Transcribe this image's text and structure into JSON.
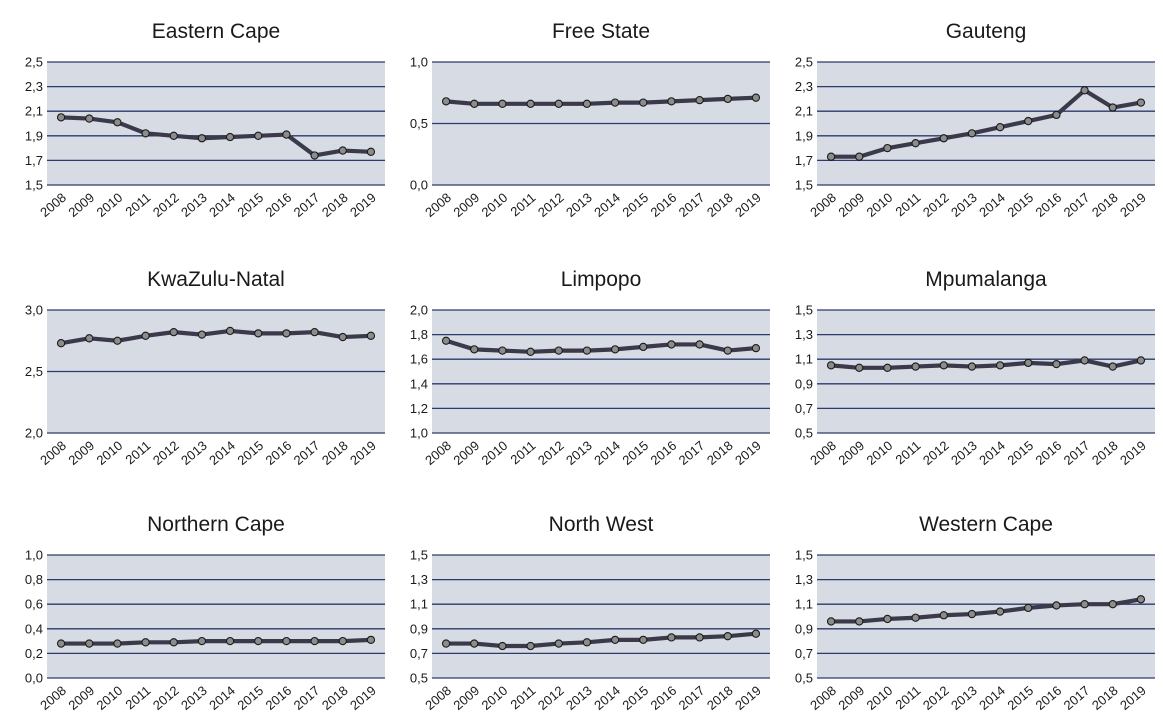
{
  "chart_data": [
    {
      "type": "line",
      "title": "Eastern Cape",
      "x": [
        "2008",
        "2009",
        "2010",
        "2011",
        "2012",
        "2013",
        "2014",
        "2015",
        "2016",
        "2017",
        "2018",
        "2019"
      ],
      "ylim": [
        1.5,
        2.5
      ],
      "yticks": [
        "1,5",
        "1,7",
        "1,9",
        "2,1",
        "2,3",
        "2,5"
      ],
      "grid": true,
      "series": [
        {
          "values": [
            2.05,
            2.04,
            2.01,
            1.92,
            1.9,
            1.88,
            1.89,
            1.9,
            1.91,
            1.74,
            1.78,
            1.77
          ]
        }
      ]
    },
    {
      "type": "line",
      "title": "Free State",
      "x": [
        "2008",
        "2009",
        "2010",
        "2011",
        "2012",
        "2013",
        "2014",
        "2015",
        "2016",
        "2017",
        "2018",
        "2019"
      ],
      "ylim": [
        0,
        1
      ],
      "yticks": [
        "0,0",
        "0,5",
        "1,0"
      ],
      "grid": true,
      "series": [
        {
          "values": [
            0.68,
            0.66,
            0.66,
            0.66,
            0.66,
            0.66,
            0.67,
            0.67,
            0.68,
            0.69,
            0.7,
            0.71
          ]
        }
      ]
    },
    {
      "type": "line",
      "title": "Gauteng",
      "x": [
        "2008",
        "2009",
        "2010",
        "2011",
        "2012",
        "2013",
        "2014",
        "2015",
        "2016",
        "2017",
        "2018",
        "2019"
      ],
      "ylim": [
        1.5,
        2.5
      ],
      "yticks": [
        "1,5",
        "1,7",
        "1,9",
        "2,1",
        "2,3",
        "2,5"
      ],
      "grid": true,
      "series": [
        {
          "values": [
            1.73,
            1.73,
            1.8,
            1.84,
            1.88,
            1.92,
            1.97,
            2.02,
            2.07,
            2.27,
            2.13,
            2.17
          ]
        }
      ]
    },
    {
      "type": "line",
      "title": "KwaZulu-Natal",
      "x": [
        "2008",
        "2009",
        "2010",
        "2011",
        "2012",
        "2013",
        "2014",
        "2015",
        "2016",
        "2017",
        "2018",
        "2019"
      ],
      "ylim": [
        2,
        3
      ],
      "yticks": [
        "2,0",
        "2,5",
        "3,0"
      ],
      "grid": true,
      "series": [
        {
          "values": [
            2.73,
            2.77,
            2.75,
            2.79,
            2.82,
            2.8,
            2.83,
            2.81,
            2.81,
            2.82,
            2.78,
            2.79
          ]
        }
      ]
    },
    {
      "type": "line",
      "title": "Limpopo",
      "x": [
        "2008",
        "2009",
        "2010",
        "2011",
        "2012",
        "2013",
        "2014",
        "2015",
        "2016",
        "2017",
        "2018",
        "2019"
      ],
      "ylim": [
        1,
        2
      ],
      "yticks": [
        "1,0",
        "1,2",
        "1,4",
        "1,6",
        "1,8",
        "2,0"
      ],
      "grid": true,
      "series": [
        {
          "values": [
            1.75,
            1.68,
            1.67,
            1.66,
            1.67,
            1.67,
            1.68,
            1.7,
            1.72,
            1.72,
            1.67,
            1.69
          ]
        }
      ]
    },
    {
      "type": "line",
      "title": "Mpumalanga",
      "x": [
        "2008",
        "2009",
        "2010",
        "2011",
        "2012",
        "2013",
        "2014",
        "2015",
        "2016",
        "2017",
        "2018",
        "2019"
      ],
      "ylim": [
        0.5,
        1.5
      ],
      "yticks": [
        "0,5",
        "0,7",
        "0,9",
        "1,1",
        "1,3",
        "1,5"
      ],
      "grid": true,
      "series": [
        {
          "values": [
            1.05,
            1.03,
            1.03,
            1.04,
            1.05,
            1.04,
            1.05,
            1.07,
            1.06,
            1.09,
            1.04,
            1.09
          ]
        }
      ]
    },
    {
      "type": "line",
      "title": "Northern Cape",
      "x": [
        "2008",
        "2009",
        "2010",
        "2011",
        "2012",
        "2013",
        "2014",
        "2015",
        "2016",
        "2017",
        "2018",
        "2019"
      ],
      "ylim": [
        0,
        1
      ],
      "yticks": [
        "0,0",
        "0,2",
        "0,4",
        "0,6",
        "0,8",
        "1,0"
      ],
      "grid": true,
      "series": [
        {
          "values": [
            0.28,
            0.28,
            0.28,
            0.29,
            0.29,
            0.3,
            0.3,
            0.3,
            0.3,
            0.3,
            0.3,
            0.31
          ]
        }
      ]
    },
    {
      "type": "line",
      "title": "North West",
      "x": [
        "2008",
        "2009",
        "2010",
        "2011",
        "2012",
        "2013",
        "2014",
        "2015",
        "2016",
        "2017",
        "2018",
        "2019"
      ],
      "ylim": [
        0.5,
        1.5
      ],
      "yticks": [
        "0,5",
        "0,7",
        "0,9",
        "1,1",
        "1,3",
        "1,5"
      ],
      "grid": true,
      "series": [
        {
          "values": [
            0.78,
            0.78,
            0.76,
            0.76,
            0.78,
            0.79,
            0.81,
            0.81,
            0.83,
            0.83,
            0.84,
            0.86
          ]
        }
      ]
    },
    {
      "type": "line",
      "title": "Western Cape",
      "x": [
        "2008",
        "2009",
        "2010",
        "2011",
        "2012",
        "2013",
        "2014",
        "2015",
        "2016",
        "2017",
        "2018",
        "2019"
      ],
      "ylim": [
        0.5,
        1.5
      ],
      "yticks": [
        "0,5",
        "0,7",
        "0,9",
        "1,1",
        "1,3",
        "1,5"
      ],
      "grid": true,
      "series": [
        {
          "values": [
            0.96,
            0.96,
            0.98,
            0.99,
            1.01,
            1.02,
            1.04,
            1.07,
            1.09,
            1.1,
            1.1,
            1.14
          ]
        }
      ]
    }
  ],
  "colors": {
    "plot_background": "#d6dbe4",
    "gridline": "#2d3a6b",
    "line": "#3a3a4a",
    "marker_fill": "#8c8c8c",
    "marker_stroke": "#1a1a1a"
  }
}
